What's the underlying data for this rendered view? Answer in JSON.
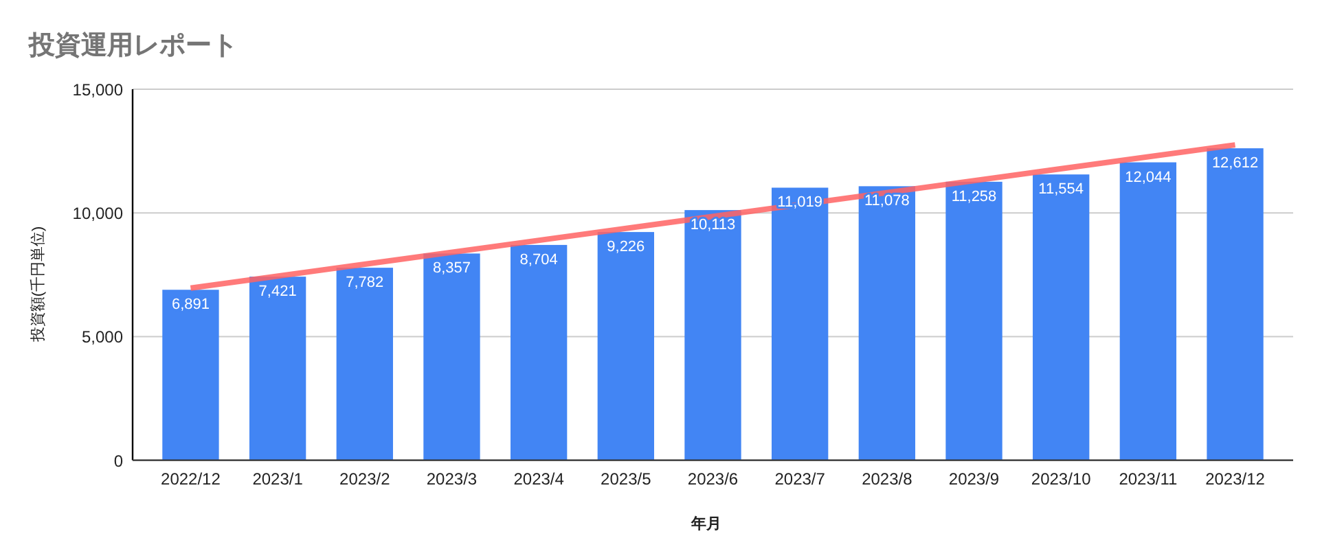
{
  "chart_data": {
    "type": "bar",
    "title": "投資運用レポート",
    "xlabel": "年月",
    "ylabel": "投資額(千円単位)",
    "categories": [
      "2022/12",
      "2023/1",
      "2023/2",
      "2023/3",
      "2023/4",
      "2023/5",
      "2023/6",
      "2023/7",
      "2023/8",
      "2023/9",
      "2023/10",
      "2023/11",
      "2023/12"
    ],
    "series": [
      {
        "color": "#4285f4",
        "values": [
          6891,
          7421,
          7782,
          8357,
          8704,
          9226,
          10113,
          11019,
          11078,
          11258,
          11554,
          12044,
          12612
        ],
        "value_labels": [
          "6,891",
          "7,421",
          "7,782",
          "8,357",
          "8,704",
          "9,226",
          "10,113",
          "11,019",
          "11,078",
          "11,258",
          "11,554",
          "12,044",
          "12,612"
        ]
      },
      {
        "type": "line",
        "color": "#ff6363",
        "x": [
          "2022/12",
          "2023/12"
        ],
        "values": [
          6960,
          12750
        ]
      }
    ],
    "ylim": [
      0,
      15000
    ],
    "yticks": [
      0,
      {
        "value": 5000,
        "label": "5,000"
      },
      {
        "value": 10000,
        "label": "10,000"
      },
      {
        "value": 15000,
        "label": "15,000"
      }
    ],
    "grid": "y"
  }
}
